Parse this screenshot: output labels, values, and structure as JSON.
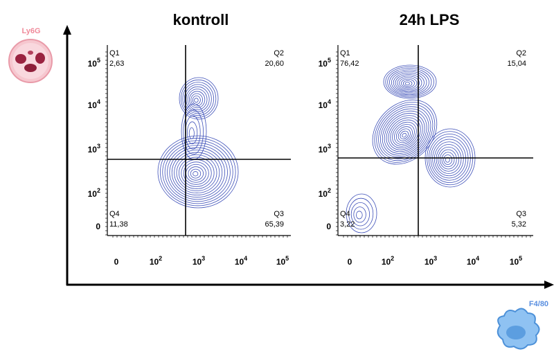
{
  "y_axis_label": "Ly6G",
  "x_axis_label": "F4/80",
  "panels": [
    {
      "title": "kontroll",
      "quadrants": [
        {
          "name": "Q1",
          "value": "2,63"
        },
        {
          "name": "Q2",
          "value": "20,60"
        },
        {
          "name": "Q3",
          "value": "65,39"
        },
        {
          "name": "Q4",
          "value": "11,38"
        }
      ],
      "yticks": [
        {
          "base": "10",
          "exp": "5"
        },
        {
          "base": "10",
          "exp": "4"
        },
        {
          "base": "10",
          "exp": "3"
        },
        {
          "base": "10",
          "exp": "2"
        },
        {
          "base": "0"
        }
      ],
      "xticks": [
        {
          "base": "0"
        },
        {
          "base": "10",
          "exp": "2"
        },
        {
          "base": "10",
          "exp": "3"
        },
        {
          "base": "10",
          "exp": "4"
        },
        {
          "base": "10",
          "exp": "5"
        }
      ]
    },
    {
      "title": "24h LPS",
      "quadrants": [
        {
          "name": "Q1",
          "value": "76,42"
        },
        {
          "name": "Q2",
          "value": "15,04"
        },
        {
          "name": "Q3",
          "value": "5,32"
        },
        {
          "name": "Q4",
          "value": "3,22"
        }
      ],
      "yticks": [
        {
          "base": "10",
          "exp": "5"
        },
        {
          "base": "10",
          "exp": "4"
        },
        {
          "base": "10",
          "exp": "3"
        },
        {
          "base": "10",
          "exp": "2"
        },
        {
          "base": "0"
        }
      ],
      "xticks": [
        {
          "base": "0"
        },
        {
          "base": "10",
          "exp": "2"
        },
        {
          "base": "10",
          "exp": "3"
        },
        {
          "base": "10",
          "exp": "4"
        },
        {
          "base": "10",
          "exp": "5"
        }
      ]
    }
  ]
}
